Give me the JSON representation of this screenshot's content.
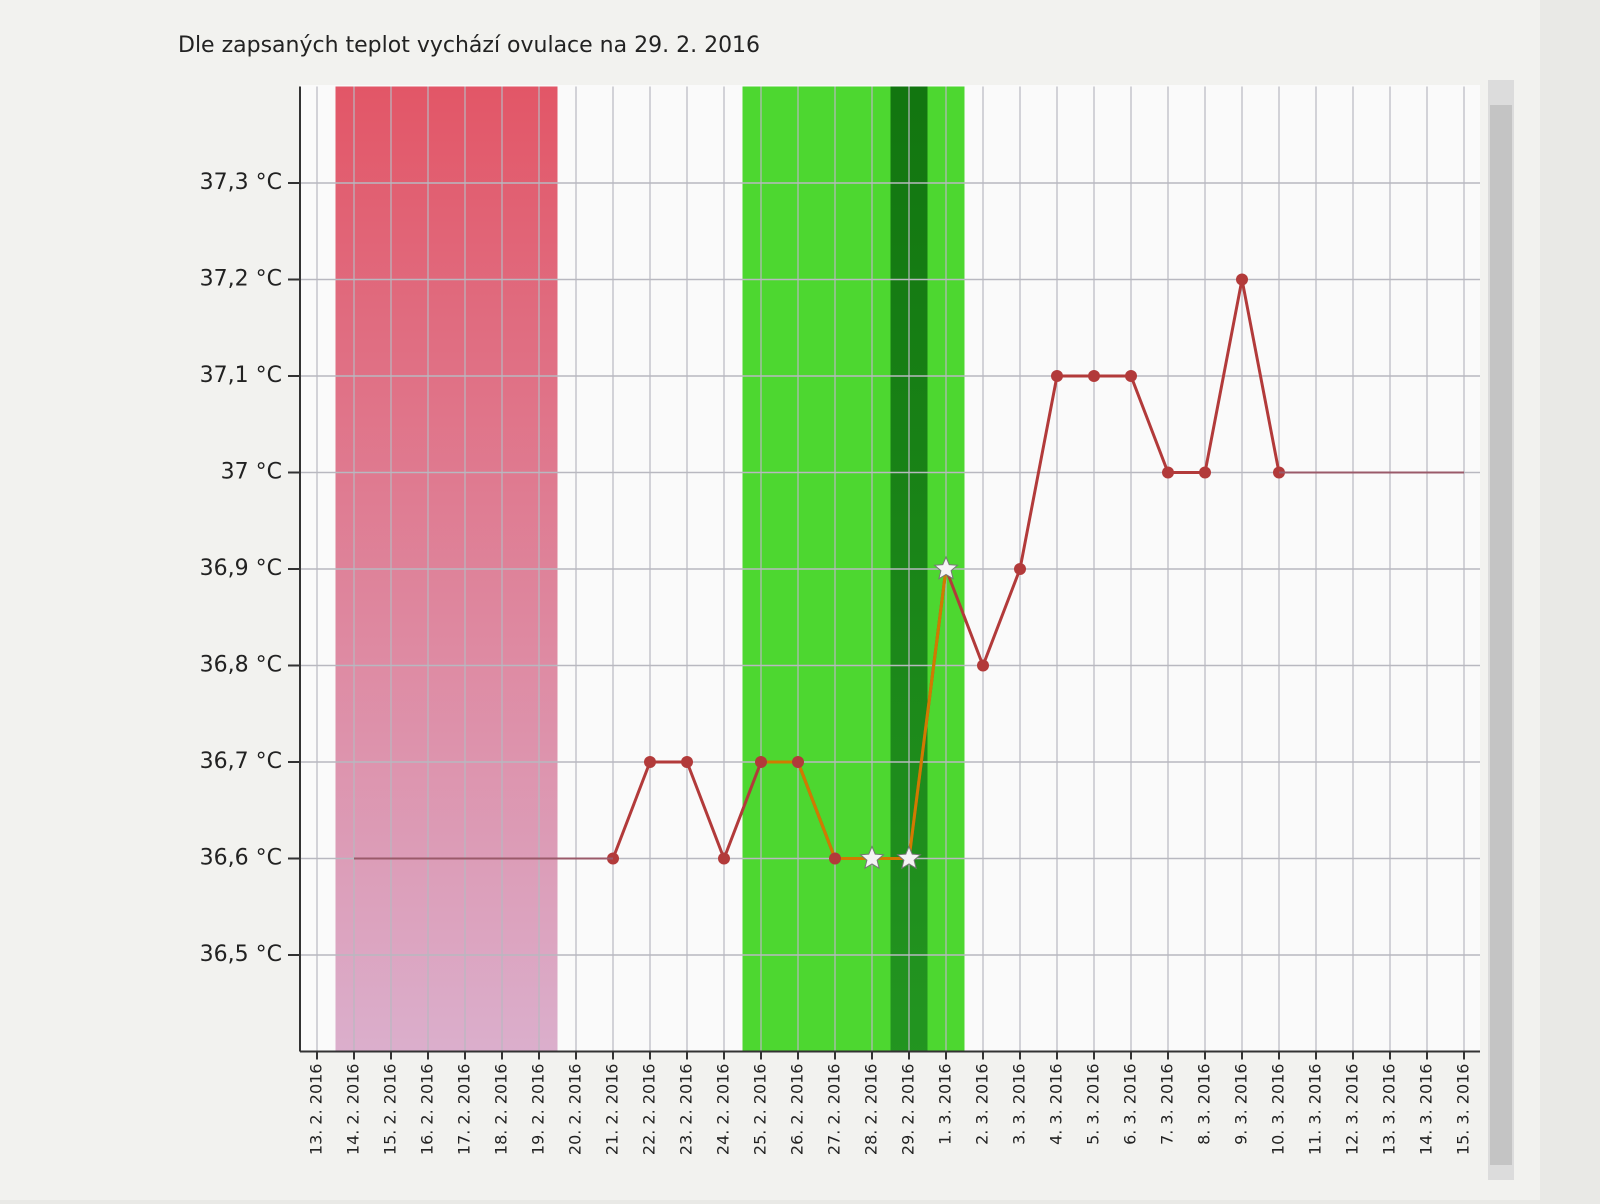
{
  "chart_data": {
    "type": "line",
    "subtitle": "Dle zapsaných teplot vychází ovulace na 29. 2. 2016",
    "categories": [
      "13. 2. 2016",
      "14. 2. 2016",
      "15. 2. 2016",
      "16. 2. 2016",
      "17. 2. 2016",
      "18. 2. 2016",
      "19. 2. 2016",
      "20. 2. 2016",
      "21. 2. 2016",
      "22. 2. 2016",
      "23. 2. 2016",
      "24. 2. 2016",
      "25. 2. 2016",
      "26. 2. 2016",
      "27. 2. 2016",
      "28. 2. 2016",
      "29. 2. 2016",
      "1. 3. 2016",
      "2. 3. 2016",
      "3. 3. 2016",
      "4. 3. 2016",
      "5. 3. 2016",
      "6. 3. 2016",
      "7. 3. 2016",
      "8. 3. 2016",
      "9. 3. 2016",
      "10. 3. 2016",
      "11. 3. 2016",
      "12. 3. 2016",
      "13. 3. 2016",
      "14. 3. 2016",
      "15. 3. 2016"
    ],
    "series": [
      {
        "color": "#b23a3a",
        "markers": true,
        "values": [
          null,
          null,
          null,
          null,
          null,
          null,
          null,
          null,
          36.6,
          36.7,
          36.7,
          36.6,
          36.7,
          36.7,
          36.6,
          36.6,
          36.6,
          36.9,
          36.8,
          36.9,
          37.1,
          37.1,
          37.1,
          37.0,
          37.0,
          37.2,
          37.0,
          null,
          null,
          null,
          null,
          null
        ]
      },
      {
        "color": "#9a5a6a",
        "markers": false,
        "values": [
          null,
          36.6,
          36.6,
          36.6,
          36.6,
          36.6,
          36.6,
          36.6,
          36.6,
          null,
          null,
          null,
          null,
          null,
          null,
          null,
          null,
          null,
          null,
          null,
          null,
          null,
          null,
          null,
          null,
          null,
          37.0,
          37.0,
          37.0,
          37.0,
          37.0,
          37.0
        ]
      }
    ],
    "star_points": [
      "28. 2. 2016",
      "29. 2. 2016",
      "1. 3. 2016"
    ],
    "fertile_color": "#d07b00",
    "bands": [
      {
        "start": "14. 2. 2016",
        "end": "19. 2. 2016",
        "color": "#e0485a",
        "color_bottom": "#d8a8c8"
      },
      {
        "start": "25. 2. 2016",
        "end": "1. 3. 2016",
        "color": "#3ed41e",
        "color_bottom": "#3ed41e"
      },
      {
        "start": "29. 2. 2016",
        "end": "29. 2. 2016",
        "color": "#0d6d0d",
        "color_bottom": "#1f8f1f"
      }
    ],
    "ylim": [
      36.4,
      37.4
    ],
    "yticks": [
      {
        "value": 36.5,
        "label": "36,5 °C"
      },
      {
        "value": 36.6,
        "label": "36,6 °C"
      },
      {
        "value": 36.7,
        "label": "36,7 °C"
      },
      {
        "value": 36.8,
        "label": "36,8 °C"
      },
      {
        "value": 36.9,
        "label": "36,9 °C"
      },
      {
        "value": 37.0,
        "label": "37 °C"
      },
      {
        "value": 37.1,
        "label": "37,1 °C"
      },
      {
        "value": 37.2,
        "label": "37,2 °C"
      },
      {
        "value": 37.3,
        "label": "37,3 °C"
      }
    ],
    "grid": true
  }
}
